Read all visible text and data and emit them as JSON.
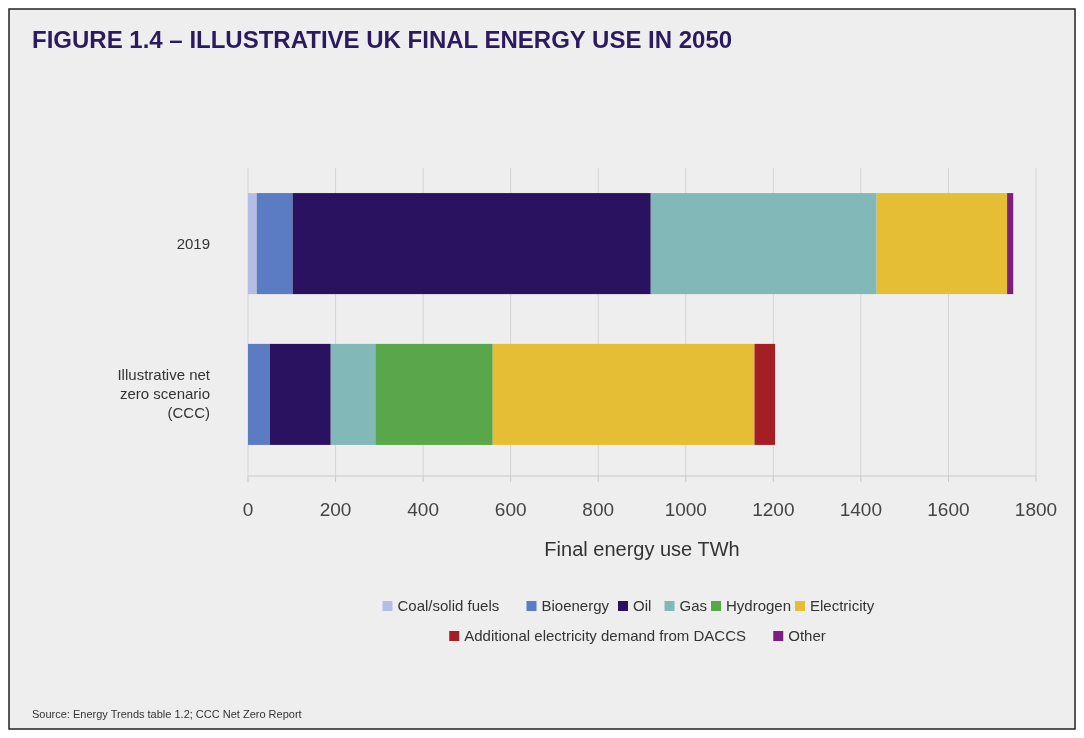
{
  "chart_data": {
    "type": "bar",
    "orientation": "horizontal",
    "stacked": true,
    "title": "FIGURE 1.4 – ILLUSTRATIVE UK FINAL ENERGY USE IN 2050",
    "xlabel": "Final energy use TWh",
    "categories": [
      "2019",
      "Illustrative net zero scenario (CCC)"
    ],
    "series": [
      {
        "name": "Coal/solid fuels",
        "color": "#b3bde6",
        "values": [
          20,
          null
        ]
      },
      {
        "name": "Bioenergy",
        "color": "#5b7bc2",
        "values": [
          82,
          50
        ]
      },
      {
        "name": "Oil",
        "color": "#2b1260",
        "values": [
          818,
          139
        ]
      },
      {
        "name": "Gas",
        "color": "#82b8b8",
        "values": [
          516,
          102
        ]
      },
      {
        "name": "Hydrogen",
        "color": "#5aa64a",
        "values": [
          null,
          268
        ]
      },
      {
        "name": "Electricity",
        "color": "#e6be35",
        "values": [
          298,
          598
        ]
      },
      {
        "name": "Additional electricity demand from DACCS",
        "color": "#a51e23",
        "values": [
          null,
          47
        ]
      },
      {
        "name": "Other",
        "color": "#7b2080",
        "values": [
          14,
          null
        ]
      }
    ],
    "xlim": [
      0,
      1800
    ],
    "xticks": [
      0,
      200,
      400,
      600,
      800,
      1000,
      1200,
      1400,
      1600,
      1800
    ],
    "grid": "x",
    "legend": "bottom",
    "annotations": [
      "Source: Energy Trends table 1.2; CCC Net Zero Report"
    ]
  }
}
